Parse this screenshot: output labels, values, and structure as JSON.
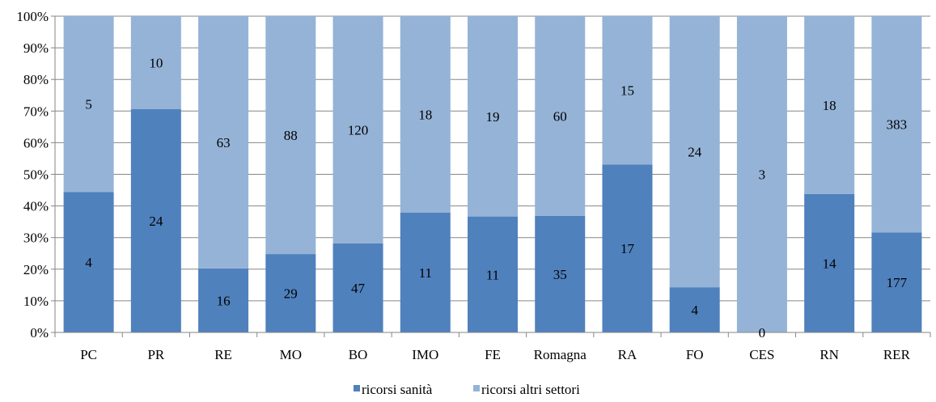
{
  "chart_data": {
    "type": "bar",
    "stacked": true,
    "normalized": true,
    "categories": [
      "PC",
      "PR",
      "RE",
      "MO",
      "BO",
      "IMO",
      "FE",
      "Romagna",
      "RA",
      "FO",
      "CES",
      "RN",
      "RER"
    ],
    "series": [
      {
        "name": "ricorsi sanità",
        "values": [
          4,
          24,
          16,
          29,
          47,
          11,
          11,
          35,
          17,
          4,
          0,
          14,
          177
        ],
        "color": "#4F81BD"
      },
      {
        "name": "ricorsi altri settori",
        "values": [
          5,
          10,
          63,
          88,
          120,
          18,
          19,
          60,
          15,
          24,
          3,
          18,
          383
        ],
        "color": "#95B3D7"
      }
    ],
    "y_ticks": [
      "0%",
      "10%",
      "20%",
      "30%",
      "40%",
      "50%",
      "60%",
      "70%",
      "80%",
      "90%",
      "100%"
    ],
    "ylim": [
      0,
      100
    ],
    "title": "",
    "xlabel": "",
    "ylabel": "",
    "grid": "horizontal",
    "legend": "bottom-center"
  }
}
